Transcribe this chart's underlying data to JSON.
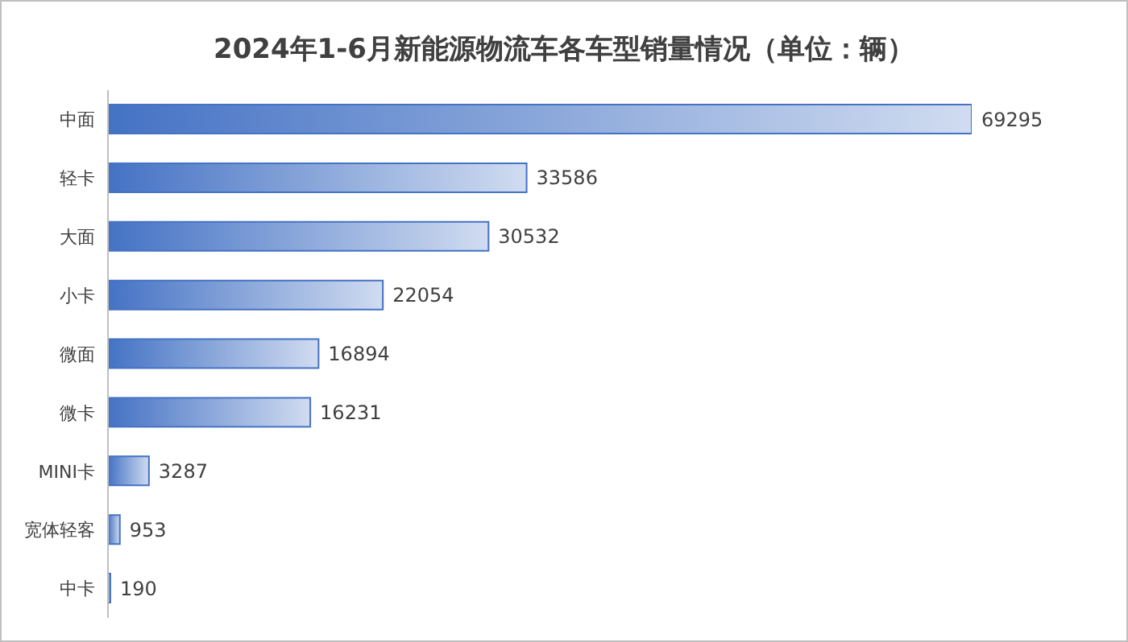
{
  "chart_data": {
    "type": "bar",
    "orientation": "horizontal",
    "title": "2024年1-6月新能源物流车各车型销量情况（单位：辆）",
    "categories": [
      "中面",
      "轻卡",
      "大面",
      "小卡",
      "微面",
      "微卡",
      "MINI卡",
      "宽体轻客",
      "中卡"
    ],
    "values": [
      69295,
      33586,
      30532,
      22054,
      16894,
      16231,
      3287,
      953,
      190
    ],
    "color": "#4472c4",
    "data_labels": true
  }
}
